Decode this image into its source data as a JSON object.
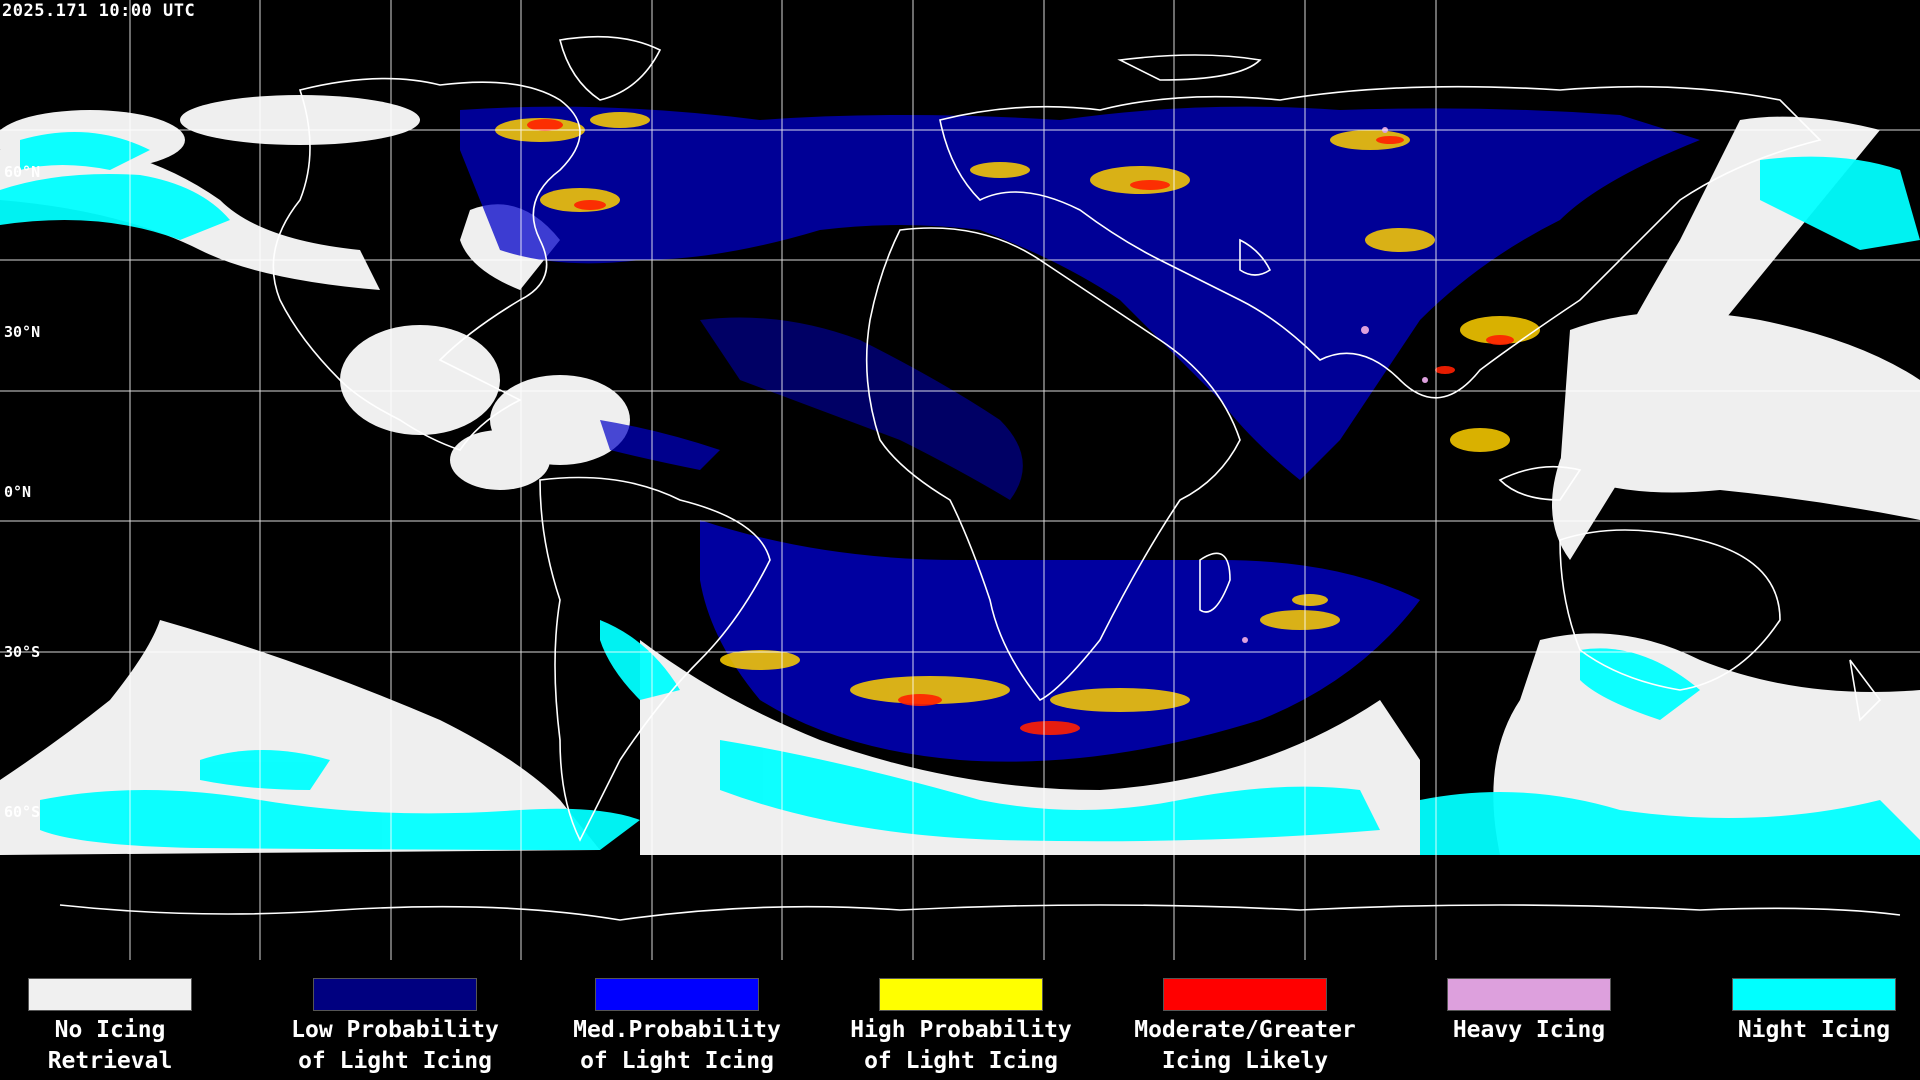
{
  "header": {
    "timestamp": "2025.171 10:00 UTC"
  },
  "map": {
    "lat_labels": [
      "60°N",
      "30°N",
      "0°N",
      "30°S",
      "60°S"
    ],
    "colors": {
      "background": "#000000",
      "grid": "#ffffff",
      "coastline": "#ffffff",
      "no_icing": "#f0f0f0",
      "night": "#00ffff"
    }
  },
  "legend": {
    "items": [
      {
        "line1": "No Icing",
        "line2": "Retrieval",
        "color": "#f0f0f0"
      },
      {
        "line1": "Low Probability",
        "line2": "of Light Icing",
        "color": "#000080"
      },
      {
        "line1": "Med.Probability",
        "line2": "of Light Icing",
        "color": "#0000ff"
      },
      {
        "line1": "High Probability",
        "line2": "of Light Icing",
        "color": "#ffff00"
      },
      {
        "line1": "Moderate/Greater",
        "line2": "Icing Likely",
        "color": "#ff0000"
      },
      {
        "line1": "Heavy Icing",
        "line2": "",
        "color": "#dda0dd"
      },
      {
        "line1": "Night Icing",
        "line2": "",
        "color": "#00ffff"
      }
    ]
  }
}
